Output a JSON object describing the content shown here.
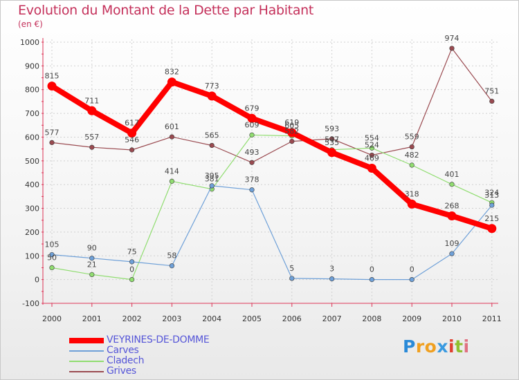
{
  "chart_data": {
    "type": "line",
    "title": "Evolution du Montant de la Dette par Habitant",
    "subtitle": "(en €)",
    "x": [
      "2000",
      "2001",
      "2002",
      "2003",
      "2004",
      "2005",
      "2006",
      "2007",
      "2008",
      "2009",
      "2010",
      "2011"
    ],
    "yticks": [
      "1000",
      "900",
      "800",
      "700",
      "600",
      "500",
      "400",
      "300",
      "200",
      "100",
      "0",
      "-100"
    ],
    "ylim": [
      -100,
      1000
    ],
    "grid": true,
    "legend_placement": "bottom-left",
    "series": [
      {
        "name": "VEYRINES-DE-DOMME",
        "color": "#ff0000",
        "values": [
          815,
          711,
          617,
          832,
          773,
          679,
          619,
          535,
          469,
          318,
          268,
          215
        ],
        "labels": [
          "815",
          "711",
          "617",
          "832",
          "773",
          "679",
          "619",
          "535",
          "469",
          "318",
          "268",
          "215"
        ]
      },
      {
        "name": "Carves",
        "color": "#6ea0d8",
        "values": [
          105,
          90,
          75,
          58,
          395,
          378,
          5,
          3,
          0,
          0,
          109,
          313
        ],
        "labels": [
          "105",
          "90",
          "75",
          "58",
          "395",
          "378",
          "5",
          "3",
          "0",
          "0",
          "109",
          "313"
        ]
      },
      {
        "name": "Cladech",
        "color": "#90dd70",
        "values": [
          50,
          21,
          0,
          414,
          381,
          609,
          605,
          547,
          554,
          482,
          401,
          324
        ],
        "labels": [
          "50",
          "21",
          "0",
          "414",
          "381",
          "609",
          "605",
          "547",
          "554",
          "482",
          "401",
          "324"
        ]
      },
      {
        "name": "Grives",
        "color": "#9a4a50",
        "values": [
          577,
          557,
          546,
          601,
          565,
          493,
          582,
          593,
          524,
          559,
          974,
          751
        ],
        "labels": [
          "577",
          "557",
          "546",
          "601",
          "565",
          "493",
          "582",
          "593",
          "524",
          "559",
          "974",
          "751"
        ]
      }
    ]
  },
  "logo": {
    "text": "Proxiti",
    "letters": [
      "P",
      "r",
      "o",
      "x",
      "i",
      "t",
      "i"
    ]
  }
}
